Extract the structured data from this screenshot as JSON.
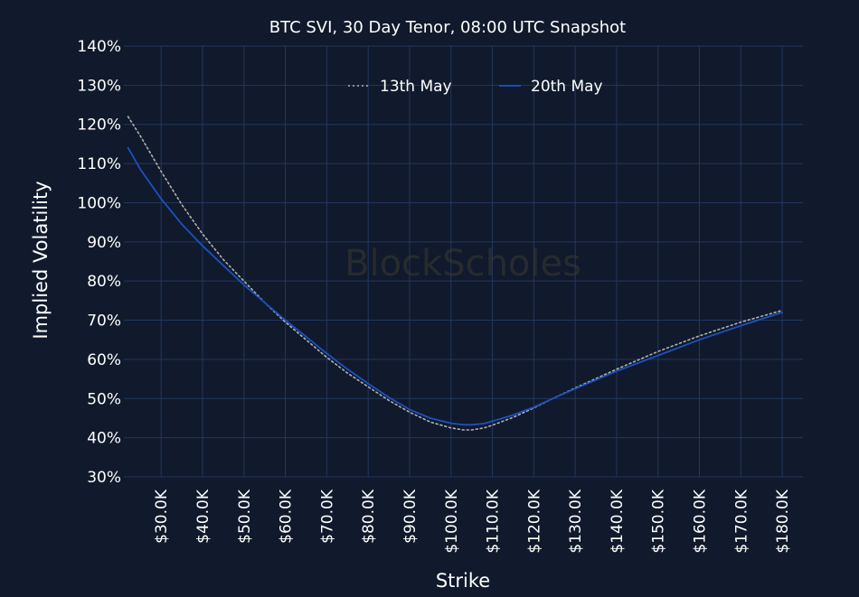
{
  "chart_data": {
    "type": "line",
    "title": "BTC SVI, 30 Day Tenor, 08:00 UTC Snapshot",
    "xlabel": "Strike",
    "ylabel": "Implied Volatility",
    "watermark": "BlockScholes",
    "x_ticks": [
      30000,
      40000,
      50000,
      60000,
      70000,
      80000,
      90000,
      100000,
      110000,
      120000,
      130000,
      140000,
      150000,
      160000,
      170000,
      180000
    ],
    "x_tick_labels": [
      "$30.0K",
      "$40.0K",
      "$50.0K",
      "$60.0K",
      "$70.0K",
      "$80.0K",
      "$90.0K",
      "$100.0K",
      "$110.0K",
      "$120.0K",
      "$130.0K",
      "$140.0K",
      "$150.0K",
      "$160.0K",
      "$170.0K",
      "$180.0K"
    ],
    "y_ticks": [
      30,
      40,
      50,
      60,
      70,
      80,
      90,
      100,
      110,
      120,
      130,
      140
    ],
    "y_tick_labels": [
      "30%",
      "40%",
      "50%",
      "60%",
      "70%",
      "80%",
      "90%",
      "100%",
      "110%",
      "120%",
      "130%",
      "140%"
    ],
    "xlim": [
      21000,
      185000
    ],
    "ylim": [
      30,
      140
    ],
    "grid": true,
    "legend_position": "top-center",
    "series": [
      {
        "name": "13th May",
        "style": "dotted",
        "color": "#b0b0b0",
        "x": [
          22000,
          25000,
          30000,
          35000,
          40000,
          45000,
          50000,
          55000,
          60000,
          65000,
          70000,
          75000,
          80000,
          85000,
          90000,
          95000,
          100000,
          103000,
          105000,
          108000,
          110000,
          115000,
          120000,
          125000,
          130000,
          140000,
          150000,
          160000,
          170000,
          180000
        ],
        "y": [
          122,
          117,
          108,
          99.5,
          92,
          85.5,
          80,
          74.5,
          69.5,
          65,
          60.5,
          56.5,
          53,
          49.5,
          46.5,
          44,
          42.5,
          42,
          42,
          42.5,
          43.2,
          45.2,
          47.6,
          50.2,
          52.7,
          57.5,
          62,
          66,
          69.5,
          72.5
        ]
      },
      {
        "name": "20th May",
        "style": "solid",
        "color": "#1e50c0",
        "x": [
          22000,
          25000,
          30000,
          35000,
          40000,
          45000,
          50000,
          55000,
          60000,
          65000,
          70000,
          75000,
          80000,
          85000,
          90000,
          95000,
          100000,
          103000,
          105000,
          108000,
          110000,
          115000,
          120000,
          125000,
          130000,
          140000,
          150000,
          160000,
          170000,
          180000
        ],
        "y": [
          114,
          108.5,
          101,
          94.5,
          89,
          84,
          79,
          74.5,
          70,
          65.8,
          61.5,
          57.5,
          53.8,
          50.3,
          47.2,
          45,
          43.7,
          43.3,
          43.3,
          43.6,
          44.2,
          45.8,
          47.8,
          50.2,
          52.5,
          57,
          61,
          65,
          68.6,
          72
        ]
      }
    ]
  }
}
